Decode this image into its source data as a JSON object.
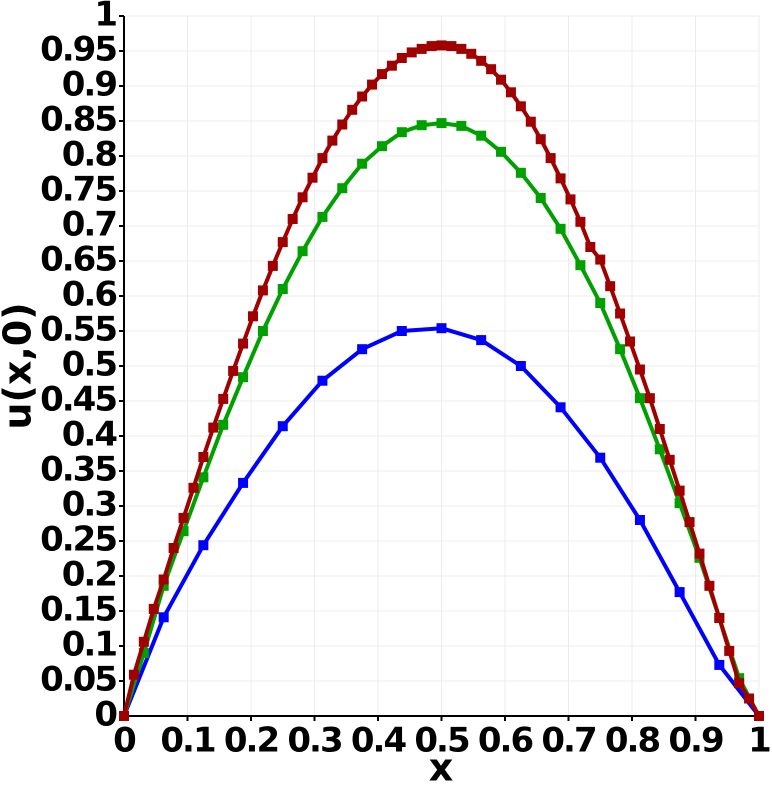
{
  "chart_data": {
    "type": "line",
    "xlabel": "x",
    "ylabel": "u(x,0)",
    "xlim": [
      0,
      1
    ],
    "ylim": [
      0,
      1
    ],
    "xticks": [
      0,
      0.1,
      0.2,
      0.3,
      0.4,
      0.5,
      0.6,
      0.7,
      0.8,
      0.9,
      1
    ],
    "yticks": [
      0,
      0.05,
      0.1,
      0.15,
      0.2,
      0.25,
      0.3,
      0.35,
      0.4,
      0.45,
      0.5,
      0.55,
      0.6,
      0.65,
      0.7,
      0.75,
      0.8,
      0.85,
      0.9,
      0.95,
      1
    ],
    "grid": true,
    "series": [
      {
        "color": "#0000ff",
        "x": [
          0,
          0.0625,
          0.125,
          0.1875,
          0.25,
          0.3125,
          0.375,
          0.4375,
          0.5,
          0.5625,
          0.625,
          0.6875,
          0.75,
          0.8125,
          0.875,
          0.9375,
          1
        ],
        "values": [
          0,
          0.141,
          0.244,
          0.333,
          0.414,
          0.479,
          0.524,
          0.55,
          0.554,
          0.537,
          0.5,
          0.441,
          0.369,
          0.28,
          0.177,
          0.073,
          0
        ]
      },
      {
        "color": "#00a000",
        "x": [
          0,
          0.03125,
          0.0625,
          0.09375,
          0.125,
          0.15625,
          0.1875,
          0.21875,
          0.25,
          0.28125,
          0.3125,
          0.34375,
          0.375,
          0.40625,
          0.4375,
          0.46875,
          0.5,
          0.53125,
          0.5625,
          0.59375,
          0.625,
          0.65625,
          0.6875,
          0.71875,
          0.75,
          0.78125,
          0.8125,
          0.84375,
          0.875,
          0.90625,
          0.9375,
          0.96875,
          1
        ],
        "values": [
          0,
          0.09,
          0.186,
          0.264,
          0.341,
          0.416,
          0.484,
          0.55,
          0.61,
          0.664,
          0.713,
          0.754,
          0.789,
          0.814,
          0.834,
          0.844,
          0.847,
          0.843,
          0.829,
          0.806,
          0.776,
          0.74,
          0.696,
          0.644,
          0.59,
          0.524,
          0.454,
          0.381,
          0.304,
          0.226,
          0.14,
          0.054,
          0
        ]
      },
      {
        "color": "#a00000",
        "x": [
          0,
          0.015625,
          0.03125,
          0.046875,
          0.0625,
          0.078125,
          0.09375,
          0.109375,
          0.125,
          0.140625,
          0.15625,
          0.171875,
          0.1875,
          0.203125,
          0.21875,
          0.234375,
          0.25,
          0.265625,
          0.28125,
          0.296875,
          0.3125,
          0.328125,
          0.34375,
          0.359375,
          0.375,
          0.390625,
          0.40625,
          0.421875,
          0.4375,
          0.453125,
          0.46875,
          0.484375,
          0.5,
          0.515625,
          0.53125,
          0.546875,
          0.5625,
          0.578125,
          0.59375,
          0.609375,
          0.625,
          0.640625,
          0.65625,
          0.671875,
          0.6875,
          0.703125,
          0.71875,
          0.734375,
          0.75,
          0.765625,
          0.78125,
          0.796875,
          0.8125,
          0.828125,
          0.84375,
          0.859375,
          0.875,
          0.890625,
          0.90625,
          0.921875,
          0.9375,
          0.953125,
          0.96875,
          0.984375,
          1
        ],
        "values": [
          0,
          0.059,
          0.106,
          0.153,
          0.195,
          0.24,
          0.283,
          0.326,
          0.37,
          0.412,
          0.453,
          0.493,
          0.532,
          0.571,
          0.608,
          0.643,
          0.677,
          0.71,
          0.741,
          0.769,
          0.797,
          0.822,
          0.845,
          0.866,
          0.885,
          0.902,
          0.917,
          0.929,
          0.94,
          0.948,
          0.953,
          0.957,
          0.958,
          0.957,
          0.953,
          0.946,
          0.936,
          0.924,
          0.909,
          0.891,
          0.871,
          0.849,
          0.824,
          0.797,
          0.768,
          0.738,
          0.706,
          0.67,
          0.652,
          0.614,
          0.575,
          0.535,
          0.495,
          0.454,
          0.41,
          0.366,
          0.322,
          0.277,
          0.232,
          0.186,
          0.14,
          0.093,
          0.047,
          0.025,
          0
        ]
      }
    ]
  }
}
